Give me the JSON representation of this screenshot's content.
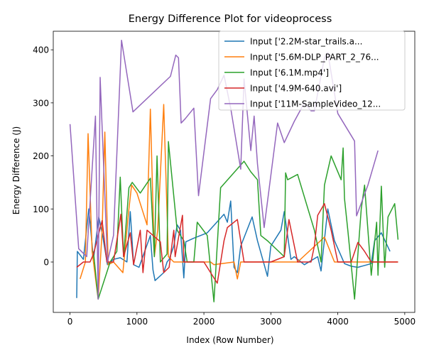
{
  "chart_data": {
    "type": "line",
    "title": "Energy Difference Plot for videoprocess",
    "xlabel": "Index (Row Number)",
    "ylabel": "Energy Difference (J)",
    "xlim": [
      -250,
      5150
    ],
    "ylim": [
      -95,
      435
    ],
    "xticks": [
      0,
      1000,
      2000,
      3000,
      4000,
      5000
    ],
    "yticks": [
      0,
      100,
      200,
      300,
      400
    ],
    "legend_position": "top-right",
    "series": [
      {
        "name": "Input ['2.2M-star_trails.a...",
        "color": "#1f77b4",
        "points": [
          [
            100,
            -68
          ],
          [
            110,
            20
          ],
          [
            200,
            5
          ],
          [
            280,
            100
          ],
          [
            350,
            5
          ],
          [
            430,
            85
          ],
          [
            480,
            55
          ],
          [
            560,
            -5
          ],
          [
            650,
            5
          ],
          [
            750,
            8
          ],
          [
            850,
            0
          ],
          [
            900,
            95
          ],
          [
            950,
            -5
          ],
          [
            1030,
            -10
          ],
          [
            1200,
            50
          ],
          [
            1240,
            -15
          ],
          [
            1270,
            -35
          ],
          [
            1400,
            -20
          ],
          [
            1450,
            0
          ],
          [
            1480,
            5
          ],
          [
            1550,
            30
          ],
          [
            1600,
            70
          ],
          [
            1650,
            60
          ],
          [
            1700,
            -30
          ],
          [
            1730,
            38
          ],
          [
            1850,
            45
          ],
          [
            1950,
            50
          ],
          [
            2050,
            55
          ],
          [
            2300,
            90
          ],
          [
            2350,
            75
          ],
          [
            2400,
            115
          ],
          [
            2450,
            -10
          ],
          [
            2500,
            -20
          ],
          [
            2550,
            30
          ],
          [
            2720,
            85
          ],
          [
            2800,
            40
          ],
          [
            2950,
            -27
          ],
          [
            3000,
            30
          ],
          [
            3150,
            60
          ],
          [
            3200,
            95
          ],
          [
            3300,
            5
          ],
          [
            3350,
            10
          ],
          [
            3500,
            -5
          ],
          [
            3700,
            10
          ],
          [
            3750,
            -17
          ],
          [
            3850,
            100
          ],
          [
            3950,
            40
          ],
          [
            4100,
            -3
          ],
          [
            4200,
            -8
          ],
          [
            4300,
            -10
          ],
          [
            4500,
            -3
          ],
          [
            4550,
            40
          ],
          [
            4650,
            55
          ],
          [
            4780,
            20
          ]
        ]
      },
      {
        "name": "Input ['5.6M-DLP_PART_2_76...",
        "color": "#ff7f0e",
        "points": [
          [
            150,
            -32
          ],
          [
            230,
            0
          ],
          [
            270,
            242
          ],
          [
            330,
            20
          ],
          [
            420,
            -70
          ],
          [
            480,
            60
          ],
          [
            520,
            245
          ],
          [
            570,
            -5
          ],
          [
            650,
            0
          ],
          [
            790,
            -20
          ],
          [
            880,
            100
          ],
          [
            920,
            145
          ],
          [
            1000,
            130
          ],
          [
            1150,
            70
          ],
          [
            1200,
            288
          ],
          [
            1260,
            10
          ],
          [
            1310,
            60
          ],
          [
            1400,
            297
          ],
          [
            1470,
            10
          ],
          [
            1550,
            0
          ],
          [
            1750,
            0
          ],
          [
            2100,
            0
          ],
          [
            2150,
            -5
          ],
          [
            2450,
            0
          ],
          [
            2500,
            -32
          ],
          [
            2550,
            0
          ],
          [
            2800,
            0
          ],
          [
            3200,
            0
          ],
          [
            3400,
            0
          ],
          [
            3800,
            47
          ],
          [
            3950,
            0
          ],
          [
            4300,
            0
          ],
          [
            4500,
            0
          ],
          [
            4600,
            0
          ],
          [
            4700,
            0
          ],
          [
            4900,
            0
          ]
        ]
      },
      {
        "name": "Input ['6.1M.mp4']",
        "color": "#2ca02c",
        "points": [
          [
            350,
            20
          ],
          [
            420,
            -70
          ],
          [
            600,
            0
          ],
          [
            700,
            20
          ],
          [
            750,
            160
          ],
          [
            800,
            10
          ],
          [
            880,
            140
          ],
          [
            930,
            150
          ],
          [
            1050,
            130
          ],
          [
            1200,
            158
          ],
          [
            1260,
            10
          ],
          [
            1300,
            200
          ],
          [
            1350,
            0
          ],
          [
            1450,
            15
          ],
          [
            1470,
            227
          ],
          [
            1600,
            60
          ],
          [
            1700,
            40
          ],
          [
            1750,
            0
          ],
          [
            1850,
            0
          ],
          [
            1900,
            75
          ],
          [
            2050,
            50
          ],
          [
            2150,
            -75
          ],
          [
            2250,
            140
          ],
          [
            2600,
            190
          ],
          [
            2700,
            170
          ],
          [
            2800,
            155
          ],
          [
            2850,
            50
          ],
          [
            2950,
            40
          ],
          [
            3200,
            10
          ],
          [
            3220,
            168
          ],
          [
            3250,
            155
          ],
          [
            3400,
            165
          ],
          [
            3650,
            60
          ],
          [
            3750,
            0
          ],
          [
            3800,
            145
          ],
          [
            3900,
            200
          ],
          [
            4050,
            155
          ],
          [
            4080,
            215
          ],
          [
            4100,
            120
          ],
          [
            4150,
            60
          ],
          [
            4250,
            -70
          ],
          [
            4350,
            100
          ],
          [
            4400,
            145
          ],
          [
            4500,
            -25
          ],
          [
            4580,
            75
          ],
          [
            4600,
            -25
          ],
          [
            4650,
            143
          ],
          [
            4700,
            -10
          ],
          [
            4750,
            85
          ],
          [
            4850,
            110
          ],
          [
            4900,
            42
          ]
        ]
      },
      {
        "name": "Input ['4.9M-640.avi']",
        "color": "#d62728",
        "points": [
          [
            100,
            -10
          ],
          [
            200,
            0
          ],
          [
            300,
            0
          ],
          [
            350,
            15
          ],
          [
            480,
            78
          ],
          [
            550,
            0
          ],
          [
            650,
            0
          ],
          [
            760,
            90
          ],
          [
            800,
            10
          ],
          [
            900,
            55
          ],
          [
            950,
            -5
          ],
          [
            1050,
            60
          ],
          [
            1090,
            -20
          ],
          [
            1150,
            60
          ],
          [
            1350,
            38
          ],
          [
            1400,
            -20
          ],
          [
            1480,
            -10
          ],
          [
            1550,
            60
          ],
          [
            1570,
            10
          ],
          [
            1680,
            88
          ],
          [
            1700,
            0
          ],
          [
            2000,
            0
          ],
          [
            2200,
            -40
          ],
          [
            2300,
            40
          ],
          [
            2350,
            65
          ],
          [
            2500,
            80
          ],
          [
            2600,
            0
          ],
          [
            3000,
            0
          ],
          [
            3200,
            10
          ],
          [
            3270,
            80
          ],
          [
            3400,
            0
          ],
          [
            3600,
            0
          ],
          [
            3650,
            30
          ],
          [
            3700,
            88
          ],
          [
            3800,
            110
          ],
          [
            3900,
            60
          ],
          [
            4000,
            0
          ],
          [
            4200,
            0
          ],
          [
            4300,
            37
          ],
          [
            4400,
            20
          ],
          [
            4500,
            0
          ],
          [
            4700,
            0
          ],
          [
            4900,
            0
          ]
        ]
      },
      {
        "name": "Input ['11M-SampleVideo_12...",
        "color": "#9467bd",
        "points": [
          [
            0,
            260
          ],
          [
            130,
            25
          ],
          [
            250,
            10
          ],
          [
            330,
            175
          ],
          [
            380,
            275
          ],
          [
            420,
            -70
          ],
          [
            450,
            348
          ],
          [
            560,
            0
          ],
          [
            650,
            50
          ],
          [
            770,
            418
          ],
          [
            940,
            283
          ],
          [
            1500,
            350
          ],
          [
            1580,
            390
          ],
          [
            1620,
            385
          ],
          [
            1660,
            262
          ],
          [
            1720,
            270
          ],
          [
            1850,
            290
          ],
          [
            1920,
            125
          ],
          [
            2100,
            308
          ],
          [
            2200,
            325
          ],
          [
            2300,
            352
          ],
          [
            2400,
            290
          ],
          [
            2550,
            175
          ],
          [
            2600,
            345
          ],
          [
            2700,
            210
          ],
          [
            2750,
            275
          ],
          [
            2800,
            185
          ],
          [
            2900,
            65
          ],
          [
            3100,
            262
          ],
          [
            3200,
            225
          ],
          [
            3350,
            265
          ],
          [
            3500,
            300
          ],
          [
            3600,
            285
          ],
          [
            3650,
            285
          ],
          [
            3800,
            385
          ],
          [
            3850,
            395
          ],
          [
            4000,
            280
          ],
          [
            4250,
            228
          ],
          [
            4280,
            87
          ],
          [
            4450,
            145
          ],
          [
            4600,
            210
          ]
        ]
      }
    ]
  }
}
